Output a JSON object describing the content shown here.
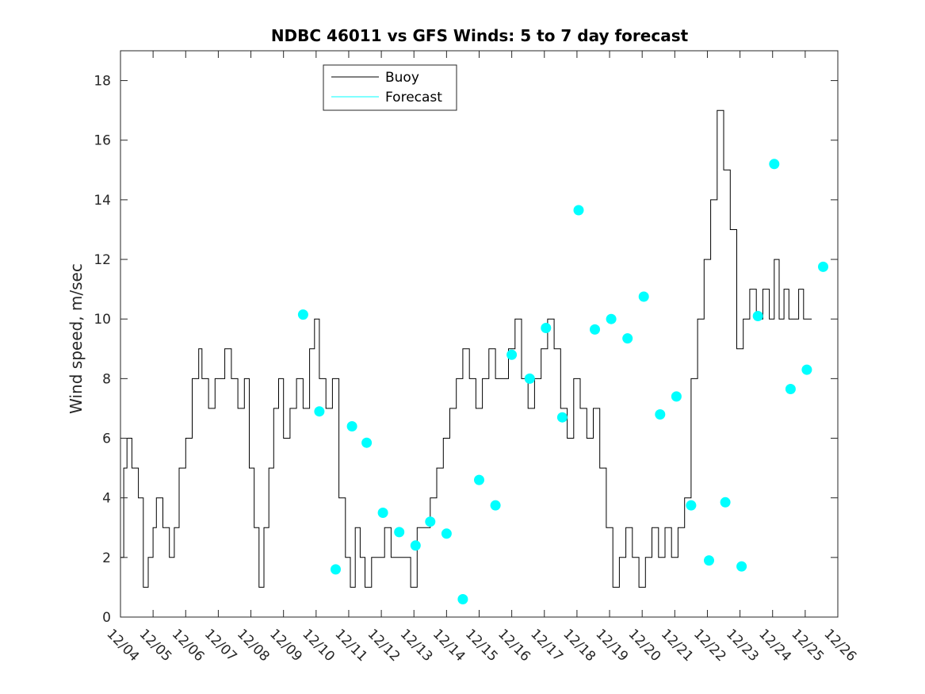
{
  "chart_data": {
    "type": "line",
    "title": "NDBC 46011 vs GFS Winds: 5 to 7 day forecast",
    "xlabel": "",
    "ylabel": "Wind speed, m/sec",
    "xlim": [
      0,
      22
    ],
    "ylim": [
      0,
      19
    ],
    "grid": false,
    "legend_position": "top-left",
    "x_tick_labels": [
      "12/04",
      "12/05",
      "12/06",
      "12/07",
      "12/08",
      "12/09",
      "12/10",
      "12/11",
      "12/12",
      "12/13",
      "12/14",
      "12/15",
      "12/16",
      "12/17",
      "12/18",
      "12/19",
      "12/20",
      "12/21",
      "12/22",
      "12/23",
      "12/24",
      "12/25",
      "12/26"
    ],
    "y_ticks": [
      0,
      2,
      4,
      6,
      8,
      10,
      12,
      14,
      16,
      18
    ],
    "colors": {
      "buoy": "#000000",
      "forecast": "#00FFFF"
    },
    "series": [
      {
        "name": "Buoy",
        "x": [
          -0.02,
          0.1,
          0.2,
          0.35,
          0.55,
          0.7,
          0.85,
          1.0,
          1.1,
          1.3,
          1.5,
          1.65,
          1.8,
          2.0,
          2.2,
          2.4,
          2.5,
          2.7,
          2.9,
          3.05,
          3.2,
          3.4,
          3.6,
          3.8,
          3.95,
          4.1,
          4.25,
          4.4,
          4.55,
          4.7,
          4.85,
          5.0,
          5.2,
          5.4,
          5.6,
          5.8,
          5.95,
          6.1,
          6.3,
          6.5,
          6.7,
          6.9,
          7.05,
          7.2,
          7.35,
          7.5,
          7.7,
          7.9,
          8.1,
          8.3,
          8.5,
          8.7,
          8.9,
          9.1,
          9.3,
          9.5,
          9.7,
          9.9,
          10.1,
          10.3,
          10.5,
          10.7,
          10.9,
          11.1,
          11.3,
          11.5,
          11.7,
          11.9,
          12.1,
          12.3,
          12.5,
          12.7,
          12.9,
          13.1,
          13.3,
          13.5,
          13.7,
          13.9,
          14.1,
          14.3,
          14.5,
          14.7,
          14.9,
          15.1,
          15.3,
          15.5,
          15.7,
          15.9,
          16.1,
          16.3,
          16.5,
          16.7,
          16.9,
          17.1,
          17.3,
          17.5,
          17.7,
          17.9,
          18.1,
          18.3,
          18.5,
          18.7,
          18.9,
          19.1,
          19.3,
          19.5,
          19.7,
          19.9,
          20.05,
          20.2,
          20.35,
          20.5,
          20.65,
          20.8,
          20.95,
          21.1,
          21.2
        ],
        "y": [
          2,
          5,
          6,
          5,
          4,
          1,
          2,
          3,
          4,
          3,
          2,
          3,
          5,
          6,
          8,
          9,
          8,
          7,
          8,
          8,
          9,
          8,
          7,
          8,
          5,
          3,
          1,
          3,
          5,
          7,
          8,
          6,
          7,
          8,
          7,
          9,
          10,
          8,
          7,
          8,
          4,
          2,
          1,
          3,
          2,
          1,
          2,
          2,
          3,
          2,
          2,
          2,
          1,
          3,
          3,
          4,
          5,
          6,
          7,
          8,
          9,
          8,
          7,
          8,
          9,
          8,
          8,
          9,
          10,
          8,
          7,
          8,
          9,
          10,
          9,
          7,
          6,
          8,
          7,
          6,
          7,
          5,
          3,
          1,
          2,
          3,
          2,
          1,
          2,
          3,
          2,
          3,
          2,
          3,
          4,
          8,
          10,
          12,
          14,
          17,
          15,
          13,
          9,
          10,
          11,
          10,
          11,
          10,
          12,
          10,
          11,
          10,
          10,
          11,
          10,
          10,
          10
        ],
        "sample_markers": []
      },
      {
        "name": "Forecast",
        "x": [],
        "y": [],
        "markers": {
          "x": [
            5.6,
            6.1,
            6.6,
            7.1,
            7.55,
            8.05,
            8.55,
            9.05,
            9.5,
            10.0,
            10.5,
            11.0,
            11.5,
            12.0,
            12.55,
            13.05,
            13.55,
            14.05,
            14.55,
            15.05,
            15.55,
            16.05,
            16.55,
            17.05,
            17.5,
            18.05,
            18.55,
            19.05,
            19.55,
            20.05,
            20.55,
            21.05,
            21.55
          ],
          "y": [
            10.15,
            6.9,
            1.6,
            6.4,
            5.85,
            3.5,
            2.85,
            2.4,
            3.2,
            2.8,
            0.6,
            4.6,
            3.75,
            8.8,
            8.0,
            9.7,
            6.7,
            13.65,
            9.65,
            10.0,
            9.35,
            10.75,
            6.8,
            7.4,
            3.75,
            1.9,
            3.85,
            1.7,
            10.1,
            15.2,
            7.65,
            8.3,
            11.75
          ]
        }
      }
    ]
  },
  "legend": {
    "items": [
      {
        "label": "Buoy",
        "color": "#000000"
      },
      {
        "label": "Forecast",
        "color": "#00FFFF"
      }
    ]
  }
}
